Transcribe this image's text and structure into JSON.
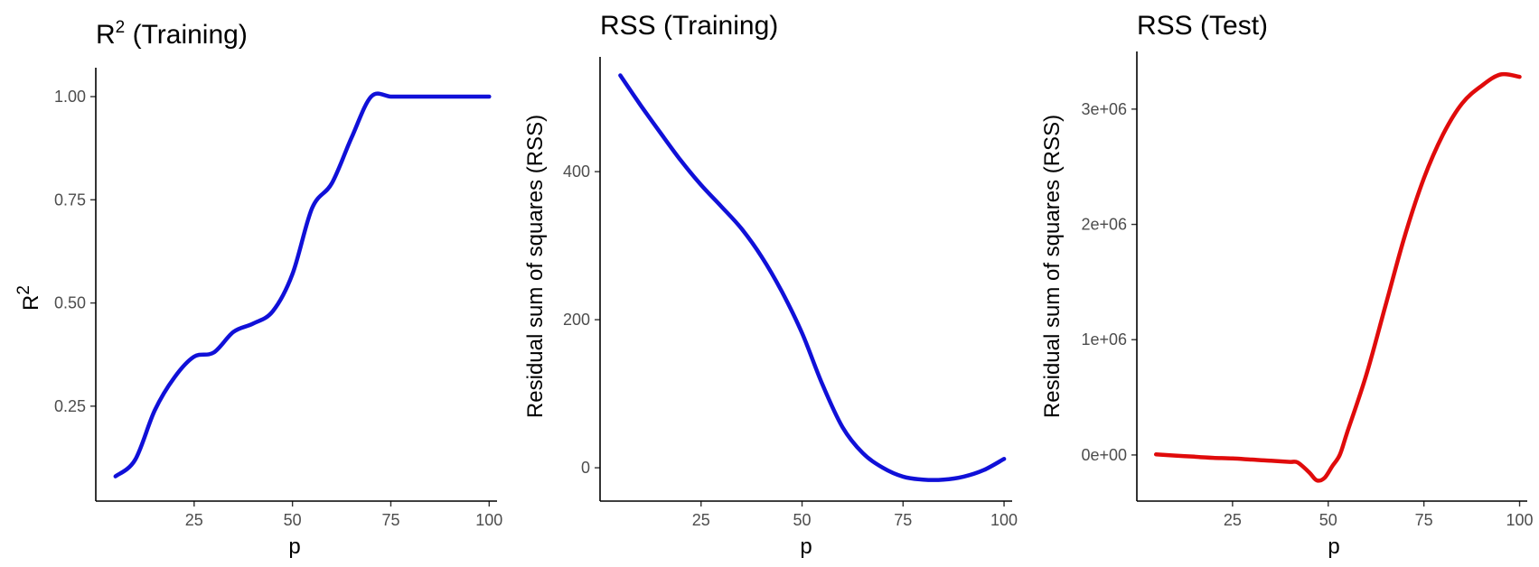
{
  "chart_data": [
    {
      "type": "line",
      "title": "R",
      "title_superscript": "2",
      "title_suffix": " (Training)",
      "xlabel": "p",
      "ylabel": "R",
      "ylabel_superscript": "2",
      "xlim": [
        0,
        102
      ],
      "ylim": [
        0.02,
        1.07
      ],
      "xticks": [
        25,
        50,
        75,
        100
      ],
      "xtick_labels": [
        "25",
        "50",
        "75",
        "100"
      ],
      "yticks": [
        0.25,
        0.5,
        0.75,
        1.0
      ],
      "ytick_labels": [
        "0.25",
        "0.50",
        "0.75",
        "1.00"
      ],
      "grid": false,
      "color": "#1010d8",
      "x": [
        5,
        10,
        15,
        20,
        25,
        30,
        35,
        40,
        45,
        50,
        55,
        60,
        65,
        70,
        75,
        80,
        85,
        90,
        95,
        100
      ],
      "y": [
        0.08,
        0.12,
        0.24,
        0.32,
        0.37,
        0.38,
        0.43,
        0.45,
        0.48,
        0.57,
        0.73,
        0.79,
        0.9,
        1.0,
        1.0,
        1.0,
        1.0,
        1.0,
        1.0,
        1.0
      ]
    },
    {
      "type": "line",
      "title": "RSS (Training)",
      "xlabel": "p",
      "ylabel": "Residual sum of squares (RSS)",
      "xlim": [
        0,
        102
      ],
      "ylim": [
        -45,
        555
      ],
      "xticks": [
        25,
        50,
        75,
        100
      ],
      "xtick_labels": [
        "25",
        "50",
        "75",
        "100"
      ],
      "yticks": [
        0,
        200,
        400
      ],
      "ytick_labels": [
        "0",
        "200",
        "400"
      ],
      "grid": false,
      "color": "#1010d8",
      "x": [
        5,
        10,
        15,
        20,
        25,
        30,
        35,
        40,
        45,
        50,
        55,
        60,
        65,
        70,
        75,
        80,
        85,
        90,
        95,
        100
      ],
      "y": [
        530,
        490,
        452,
        415,
        382,
        353,
        323,
        285,
        238,
        182,
        113,
        55,
        20,
        0,
        -12,
        -16,
        -16,
        -12,
        -3,
        12
      ]
    },
    {
      "type": "line",
      "title": "RSS (Test)",
      "xlabel": "p",
      "ylabel": "Residual sum of squares (RSS)",
      "xlim": [
        0,
        102
      ],
      "ylim": [
        -400000,
        3500000
      ],
      "xticks": [
        25,
        50,
        75,
        100
      ],
      "xtick_labels": [
        "25",
        "50",
        "75",
        "100"
      ],
      "yticks": [
        0,
        1000000,
        2000000,
        3000000
      ],
      "ytick_labels": [
        "0e+00",
        "1e+06",
        "2e+06",
        "3e+06"
      ],
      "grid": false,
      "color": "#e00b0b",
      "x": [
        5,
        10,
        15,
        20,
        25,
        30,
        35,
        40,
        42,
        45,
        47,
        49,
        51,
        53,
        55,
        60,
        65,
        70,
        75,
        80,
        85,
        90,
        95,
        100
      ],
      "y": [
        5000,
        -5000,
        -15000,
        -25000,
        -30000,
        -40000,
        -50000,
        -60000,
        -65000,
        -150000,
        -220000,
        -200000,
        -100000,
        0,
        200000,
        700000,
        1300000,
        1900000,
        2400000,
        2780000,
        3050000,
        3200000,
        3300000,
        3280000
      ]
    }
  ]
}
